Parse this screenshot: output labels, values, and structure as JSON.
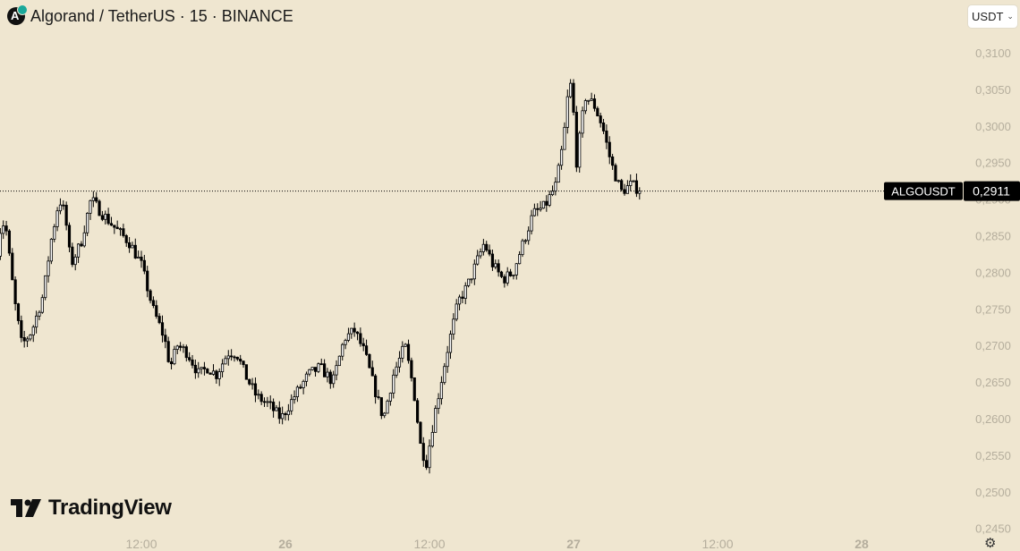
{
  "header": {
    "title": "Algorand / TetherUS · 15 · BINANCE",
    "icon": "algorand-logo-icon"
  },
  "currency_button": {
    "label": "USDT",
    "icon": "chevron-down-icon"
  },
  "logo": {
    "text": "TradingView",
    "icon": "tradingview-logo-icon"
  },
  "settings": {
    "icon": "gear-icon"
  },
  "colors": {
    "background": "#efe6d0",
    "candle": "#000000",
    "axis_text": "#b5ae9d",
    "tag_bg": "#000000",
    "tag_text": "#ffffff"
  },
  "price_tag": {
    "symbol": "ALGOUSDT",
    "price": "0,2911"
  },
  "chart_data": {
    "type": "candlestick",
    "y_axis": {
      "range": [
        0.2445,
        0.3122
      ],
      "ticks": [
        {
          "value": 0.31,
          "label": "0,3100"
        },
        {
          "value": 0.305,
          "label": "0,3050"
        },
        {
          "value": 0.3,
          "label": "0,3000"
        },
        {
          "value": 0.295,
          "label": "0,2950"
        },
        {
          "value": 0.29,
          "label": "0,2900"
        },
        {
          "value": 0.285,
          "label": "0,2850"
        },
        {
          "value": 0.28,
          "label": "0,2800"
        },
        {
          "value": 0.275,
          "label": "0,2750"
        },
        {
          "value": 0.27,
          "label": "0,2700"
        },
        {
          "value": 0.265,
          "label": "0,2650"
        },
        {
          "value": 0.26,
          "label": "0,2600"
        },
        {
          "value": 0.255,
          "label": "0,2550"
        },
        {
          "value": 0.25,
          "label": "0,2500"
        },
        {
          "value": 0.245,
          "label": "0,2450"
        }
      ]
    },
    "x_axis": {
      "ticks": [
        {
          "t": 1.5,
          "label": "12:00"
        },
        {
          "t": 2.0,
          "label": "26"
        },
        {
          "t": 2.5,
          "label": "12:00"
        },
        {
          "t": 3.0,
          "label": "27"
        },
        {
          "t": 3.5,
          "label": "12:00"
        },
        {
          "t": 4.0,
          "label": "28"
        }
      ]
    },
    "interval": "15",
    "last_price": 0.2911,
    "price_path": [
      [
        1.0,
        0.283
      ],
      [
        1.015,
        0.287
      ],
      [
        1.03,
        0.286
      ],
      [
        1.06,
        0.276
      ],
      [
        1.085,
        0.27
      ],
      [
        1.12,
        0.272
      ],
      [
        1.16,
        0.277
      ],
      [
        1.185,
        0.284
      ],
      [
        1.215,
        0.29
      ],
      [
        1.235,
        0.288
      ],
      [
        1.255,
        0.281
      ],
      [
        1.29,
        0.284
      ],
      [
        1.325,
        0.29
      ],
      [
        1.365,
        0.288
      ],
      [
        1.41,
        0.286
      ],
      [
        1.46,
        0.284
      ],
      [
        1.5,
        0.281
      ],
      [
        1.54,
        0.275
      ],
      [
        1.58,
        0.271
      ],
      [
        1.6,
        0.267
      ],
      [
        1.625,
        0.27
      ],
      [
        1.66,
        0.269
      ],
      [
        1.7,
        0.266
      ],
      [
        1.73,
        0.267
      ],
      [
        1.76,
        0.266
      ],
      [
        1.8,
        0.269
      ],
      [
        1.83,
        0.269
      ],
      [
        1.86,
        0.266
      ],
      [
        1.9,
        0.263
      ],
      [
        1.94,
        0.262
      ],
      [
        1.985,
        0.26
      ],
      [
        2.03,
        0.263
      ],
      [
        2.08,
        0.266
      ],
      [
        2.12,
        0.267
      ],
      [
        2.165,
        0.265
      ],
      [
        2.205,
        0.271
      ],
      [
        2.24,
        0.272
      ],
      [
        2.275,
        0.269
      ],
      [
        2.31,
        0.264
      ],
      [
        2.34,
        0.26
      ],
      [
        2.375,
        0.266
      ],
      [
        2.415,
        0.27
      ],
      [
        2.445,
        0.264
      ],
      [
        2.47,
        0.256
      ],
      [
        2.49,
        0.254
      ],
      [
        2.515,
        0.26
      ],
      [
        2.56,
        0.269
      ],
      [
        2.6,
        0.276
      ],
      [
        2.63,
        0.278
      ],
      [
        2.66,
        0.281
      ],
      [
        2.69,
        0.284
      ],
      [
        2.72,
        0.281
      ],
      [
        2.755,
        0.279
      ],
      [
        2.79,
        0.28
      ],
      [
        2.825,
        0.284
      ],
      [
        2.86,
        0.288
      ],
      [
        2.9,
        0.289
      ],
      [
        2.94,
        0.292
      ],
      [
        2.965,
        0.298
      ],
      [
        2.985,
        0.306
      ],
      [
        2.995,
        0.305
      ],
      [
        3.01,
        0.295
      ],
      [
        3.04,
        0.304
      ],
      [
        3.07,
        0.303
      ],
      [
        3.1,
        0.3
      ],
      [
        3.13,
        0.295
      ],
      [
        3.165,
        0.291
      ],
      [
        3.2,
        0.292
      ],
      [
        3.235,
        0.2911
      ]
    ]
  }
}
